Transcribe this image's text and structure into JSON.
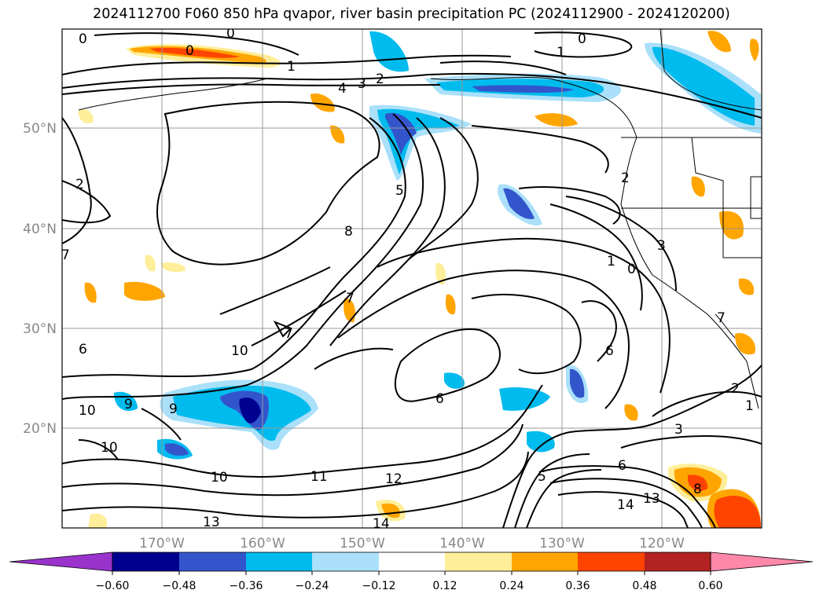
{
  "title": "2024112700 F060 850 hPa qvapor, river basin precipitation PC (2024112900 - 2024120200)",
  "lat_labels": [
    "50°N",
    "40°N",
    "30°N",
    "20°N"
  ],
  "lon_labels": [
    "170°W",
    "160°W",
    "150°W",
    "140°W",
    "130°W",
    "120°W"
  ],
  "colorbar": {
    "colors": [
      "#9933cc",
      "#000090",
      "#3355cc",
      "#00bbee",
      "#aae0fa",
      "#ffffff",
      "#ffee99",
      "#ffa500",
      "#ff4400",
      "#b22222",
      "#ff88aa"
    ],
    "ticks": [
      "−0.60",
      "−0.48",
      "−0.36",
      "−0.24",
      "−0.12",
      "0.12",
      "0.24",
      "0.36",
      "0.48",
      "0.60"
    ]
  },
  "contour_labels": [
    "0",
    "0",
    "0",
    "0",
    "1",
    "1",
    "2",
    "3",
    "4",
    "2",
    "2",
    "5",
    "8",
    "7",
    "7",
    "7",
    "6",
    "6",
    "10",
    "10",
    "10",
    "10",
    "11",
    "12",
    "13",
    "14",
    "9",
    "9",
    "6",
    "5",
    "6",
    "3",
    "2",
    "1",
    "13",
    "14",
    "1",
    "0",
    "3",
    "7",
    "8"
  ]
}
